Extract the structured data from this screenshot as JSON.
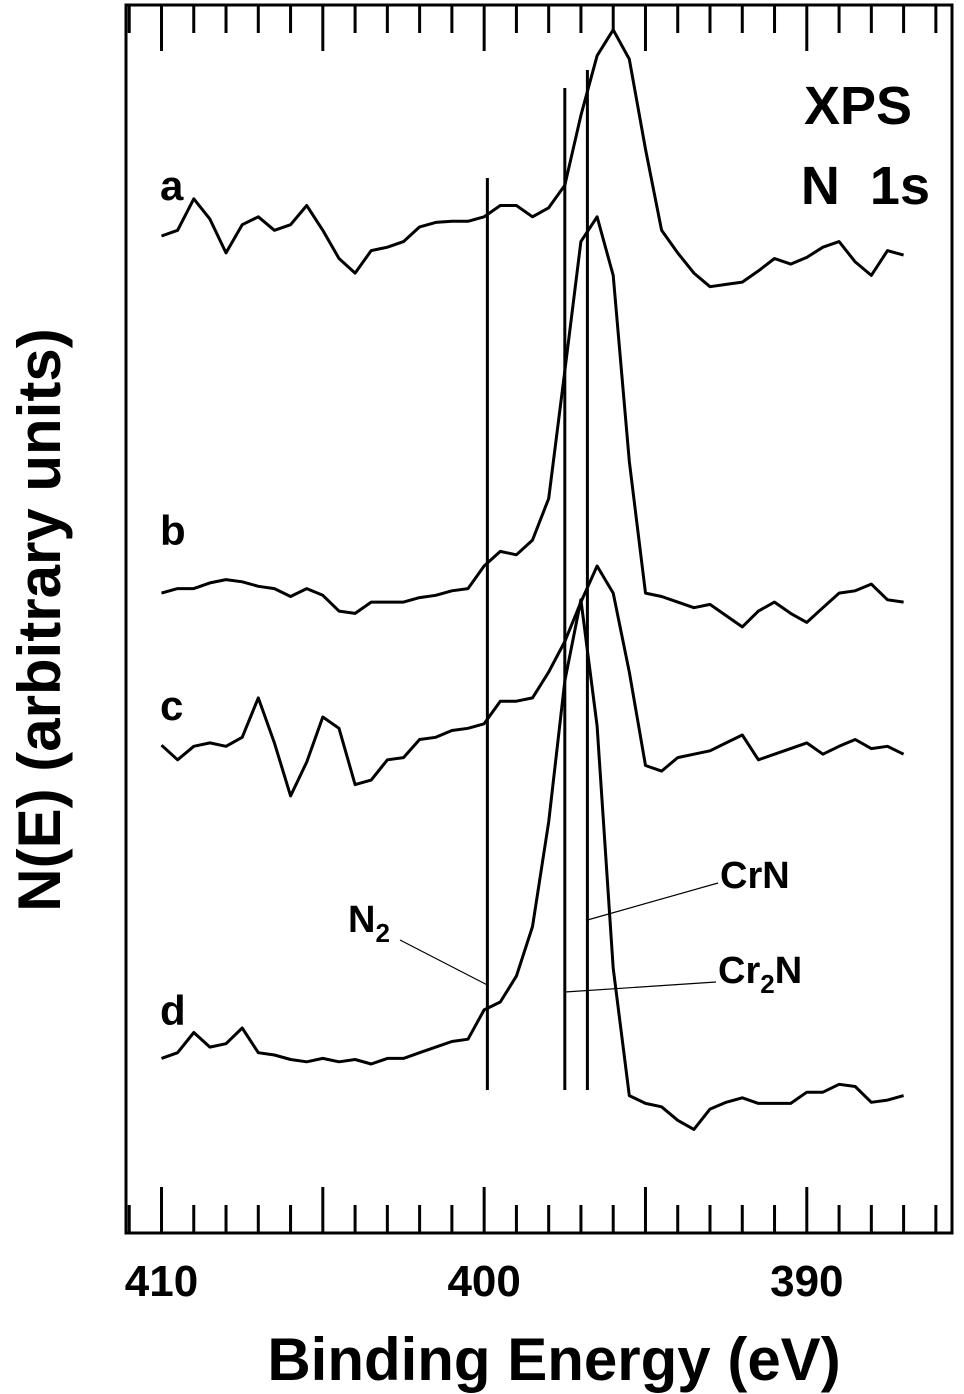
{
  "chart_data": {
    "type": "line",
    "title": "",
    "corner_label_lines": [
      "XPS",
      "N  1s"
    ],
    "xlabel": "Binding Energy  (eV)",
    "ylabel": "N(E)  (arbitrary units)",
    "xlim": [
      411.1,
      385.5
    ],
    "x_reversed": true,
    "ylim": [
      -0.3,
      10.6
    ],
    "y_ticks_shown": false,
    "grid": false,
    "x_ticks": [
      410,
      400,
      390
    ],
    "x_tick_labels": [
      "410",
      "400",
      "390"
    ],
    "x_minor_step": 1,
    "reference_lines": [
      {
        "name": "N2",
        "label": "N",
        "label_sub": "2",
        "x": 399.9
      },
      {
        "name": "Cr2N",
        "label": "Cr",
        "label_sub": "2",
        "label_suffix": "N",
        "x": 397.5
      },
      {
        "name": "CrN",
        "label": "CrN",
        "label_sub": "",
        "label_suffix": "",
        "x": 396.8
      }
    ],
    "series": [
      {
        "name": "a",
        "color": "#000000",
        "x": [
          410.0,
          409.5,
          409.0,
          408.5,
          408.0,
          407.5,
          407.0,
          406.5,
          406.0,
          405.5,
          405.0,
          404.5,
          404.0,
          403.5,
          403.0,
          402.5,
          402.0,
          401.5,
          401.0,
          400.5,
          400.0,
          399.5,
          399.0,
          398.5,
          398.0,
          397.5,
          397.0,
          396.5,
          396.0,
          395.5,
          395.0,
          394.5,
          394.0,
          393.5,
          393.0,
          392.5,
          392.0,
          391.5,
          391.0,
          390.5,
          390.0,
          389.5,
          389.0,
          388.5,
          388.0,
          387.5,
          387.0
        ],
        "y": [
          8.55,
          8.6,
          8.88,
          8.7,
          8.4,
          8.65,
          8.72,
          8.6,
          8.65,
          8.82,
          8.6,
          8.35,
          8.22,
          8.42,
          8.45,
          8.5,
          8.63,
          8.67,
          8.68,
          8.68,
          8.72,
          8.82,
          8.82,
          8.72,
          8.8,
          9.0,
          9.62,
          10.15,
          10.38,
          10.12,
          9.32,
          8.6,
          8.4,
          8.22,
          8.1,
          8.12,
          8.14,
          8.24,
          8.35,
          8.3,
          8.36,
          8.45,
          8.5,
          8.32,
          8.2,
          8.42,
          8.38
        ]
      },
      {
        "name": "b",
        "color": "#000000",
        "x": [
          410.0,
          409.5,
          409.0,
          408.5,
          408.0,
          407.5,
          407.0,
          406.5,
          406.0,
          405.5,
          405.0,
          404.5,
          404.0,
          403.5,
          403.0,
          402.5,
          402.0,
          401.5,
          401.0,
          400.5,
          400.0,
          399.5,
          399.0,
          398.5,
          398.0,
          397.5,
          397.0,
          396.5,
          396.0,
          395.5,
          395.0,
          394.5,
          394.0,
          393.5,
          393.0,
          392.5,
          392.0,
          391.5,
          391.0,
          390.5,
          390.0,
          389.5,
          389.0,
          388.5,
          388.0,
          387.5,
          387.0
        ],
        "y": [
          5.38,
          5.42,
          5.42,
          5.47,
          5.5,
          5.48,
          5.44,
          5.42,
          5.35,
          5.42,
          5.36,
          5.22,
          5.2,
          5.3,
          5.3,
          5.3,
          5.34,
          5.36,
          5.4,
          5.42,
          5.62,
          5.75,
          5.72,
          5.85,
          6.22,
          7.35,
          8.5,
          8.72,
          8.2,
          6.55,
          5.38,
          5.35,
          5.3,
          5.25,
          5.28,
          5.18,
          5.08,
          5.22,
          5.3,
          5.2,
          5.12,
          5.25,
          5.38,
          5.4,
          5.46,
          5.32,
          5.3
        ]
      },
      {
        "name": "c",
        "color": "#000000",
        "x": [
          410.0,
          409.5,
          409.0,
          408.5,
          408.0,
          407.5,
          407.0,
          406.5,
          406.0,
          405.5,
          405.0,
          404.5,
          404.0,
          403.5,
          403.0,
          402.5,
          402.0,
          401.5,
          401.0,
          400.5,
          400.0,
          399.5,
          399.0,
          398.5,
          398.0,
          397.5,
          397.0,
          396.5,
          396.0,
          395.5,
          395.0,
          394.5,
          394.0,
          393.5,
          393.0,
          392.5,
          392.0,
          391.5,
          391.0,
          390.5,
          390.0,
          389.5,
          389.0,
          388.5,
          388.0,
          387.5,
          387.0
        ],
        "y": [
          4.03,
          3.9,
          4.02,
          4.05,
          4.02,
          4.1,
          4.45,
          4.05,
          3.58,
          3.88,
          4.28,
          4.18,
          3.68,
          3.72,
          3.9,
          3.92,
          4.08,
          4.1,
          4.16,
          4.18,
          4.22,
          4.42,
          4.42,
          4.45,
          4.68,
          4.95,
          5.3,
          5.62,
          5.38,
          4.68,
          3.85,
          3.8,
          3.92,
          3.95,
          3.98,
          4.05,
          4.12,
          3.9,
          3.95,
          4.0,
          4.05,
          3.95,
          4.02,
          4.08,
          4.0,
          4.02,
          3.95
        ]
      },
      {
        "name": "d",
        "color": "#000000",
        "x": [
          410.0,
          409.5,
          409.0,
          408.5,
          408.0,
          407.5,
          407.0,
          406.5,
          406.0,
          405.5,
          405.0,
          404.5,
          404.0,
          403.5,
          403.0,
          402.5,
          402.0,
          401.5,
          401.0,
          400.5,
          400.0,
          399.5,
          399.0,
          398.5,
          398.0,
          397.5,
          397.0,
          396.5,
          396.0,
          395.5,
          395.0,
          394.5,
          394.0,
          393.5,
          393.0,
          392.5,
          392.0,
          391.5,
          391.0,
          390.5,
          390.0,
          389.5,
          389.0,
          388.5,
          388.0,
          387.5,
          387.0
        ],
        "y": [
          1.25,
          1.3,
          1.48,
          1.35,
          1.38,
          1.52,
          1.3,
          1.28,
          1.24,
          1.22,
          1.25,
          1.22,
          1.24,
          1.2,
          1.25,
          1.25,
          1.3,
          1.35,
          1.4,
          1.42,
          1.68,
          1.75,
          1.98,
          2.42,
          3.35,
          4.6,
          5.32,
          4.2,
          2.05,
          0.92,
          0.85,
          0.82,
          0.7,
          0.62,
          0.8,
          0.86,
          0.9,
          0.85,
          0.85,
          0.85,
          0.95,
          0.95,
          1.02,
          1.0,
          0.86,
          0.88,
          0.92
        ]
      }
    ]
  }
}
